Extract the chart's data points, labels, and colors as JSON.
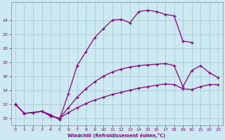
{
  "xlabel": "Windchill (Refroidissement éolien,°C)",
  "bg_color": "#cce8f0",
  "line_color": "#880088",
  "grid_color": "#aaccdd",
  "xlim": [
    -0.5,
    23.5
  ],
  "ylim": [
    9.0,
    26.5
  ],
  "xticks": [
    0,
    1,
    2,
    3,
    4,
    5,
    6,
    7,
    8,
    9,
    10,
    11,
    12,
    13,
    14,
    15,
    16,
    17,
    18,
    19,
    20,
    21,
    22,
    23
  ],
  "yticks": [
    10,
    12,
    14,
    16,
    18,
    20,
    22,
    24
  ],
  "series": [
    {
      "x": [
        0,
        1,
        2,
        3,
        4,
        5,
        6,
        7,
        8,
        9,
        10,
        11,
        12,
        13,
        14,
        15,
        16,
        17,
        18,
        19,
        20,
        21,
        22,
        23
      ],
      "y": [
        12.0,
        10.7,
        10.8,
        11.0,
        10.5,
        9.8,
        13.5,
        17.5,
        19.5,
        21.5,
        22.8,
        24.0,
        24.1,
        23.6,
        25.2,
        25.4,
        25.2,
        24.8,
        24.6,
        21.0,
        20.8,
        null,
        null,
        null
      ]
    },
    {
      "x": [
        0,
        1,
        2,
        3,
        4,
        5,
        6,
        7,
        8,
        9,
        10,
        11,
        12,
        13,
        14,
        15,
        16,
        17,
        18,
        19,
        20,
        21,
        22,
        23
      ],
      "y": [
        12.0,
        10.7,
        10.8,
        11.0,
        10.3,
        10.0,
        11.5,
        13.0,
        14.2,
        15.2,
        16.0,
        16.6,
        17.0,
        17.3,
        17.5,
        17.6,
        17.7,
        17.8,
        17.5,
        14.5,
        16.8,
        17.5,
        16.5,
        15.8
      ]
    },
    {
      "x": [
        0,
        1,
        2,
        3,
        4,
        5,
        6,
        7,
        8,
        9,
        10,
        11,
        12,
        13,
        14,
        15,
        16,
        17,
        18,
        19,
        20,
        21,
        22,
        23
      ],
      "y": [
        12.0,
        10.7,
        10.8,
        11.0,
        10.3,
        10.0,
        10.8,
        11.5,
        12.1,
        12.6,
        13.0,
        13.4,
        13.7,
        14.0,
        14.3,
        14.5,
        14.7,
        14.9,
        14.8,
        14.2,
        14.1,
        14.5,
        14.8,
        14.8
      ]
    }
  ]
}
